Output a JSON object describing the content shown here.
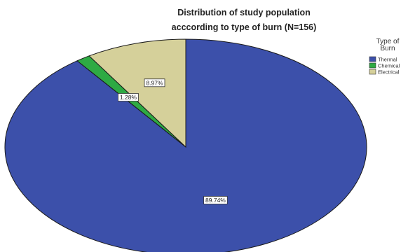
{
  "chart_data": {
    "type": "pie",
    "title_line1": "Distribution of study population",
    "title_line2": "acccording to type of burn (N=156)",
    "legend": {
      "title_line1": "Type of",
      "title_line2": "Burn",
      "placement": "right"
    },
    "slices": [
      {
        "name": "Thermal",
        "value": 89.74,
        "label": "89.74%",
        "color": "#3c50aa"
      },
      {
        "name": "Chemical",
        "value": 1.28,
        "label": "1.28%",
        "color": "#2eaa43"
      },
      {
        "name": "Electrical",
        "value": 8.97,
        "label": "8.97%",
        "color": "#d5d09a"
      }
    ],
    "start_angle_deg": 0,
    "direction": "clockwise",
    "outline_color": "#1a1a1a"
  }
}
